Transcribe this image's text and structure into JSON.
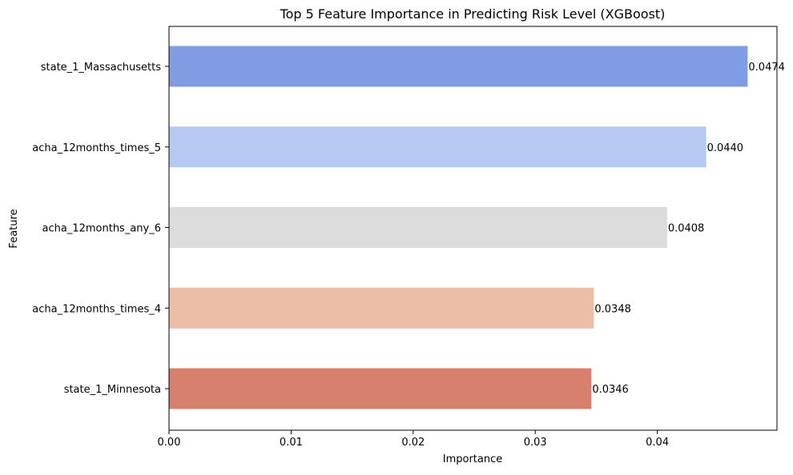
{
  "chart_data": {
    "type": "bar",
    "orientation": "horizontal",
    "title": "Top 5 Feature Importance in Predicting Risk Level (XGBoost)",
    "xlabel": "Importance",
    "ylabel": "Feature",
    "categories": [
      "state_1_Massachusetts",
      "acha_12months_times_5",
      "acha_12months_any_6",
      "acha_12months_times_4",
      "state_1_Minnesota"
    ],
    "values": [
      0.0474,
      0.044,
      0.0408,
      0.0348,
      0.0346
    ],
    "value_labels": [
      "0.0474",
      "0.0440",
      "0.0408",
      "0.0348",
      "0.0346"
    ],
    "colors": [
      "#829CE3",
      "#B6C9F3",
      "#DCDCDC",
      "#ECBDA7",
      "#D6806D"
    ],
    "xlim": [
      0,
      0.0498
    ],
    "xticks": [
      0,
      0.01,
      0.02,
      0.03,
      0.04
    ],
    "xtick_labels": [
      "0.00",
      "0.01",
      "0.02",
      "0.03",
      "0.04"
    ],
    "grid": false,
    "legend": false
  }
}
